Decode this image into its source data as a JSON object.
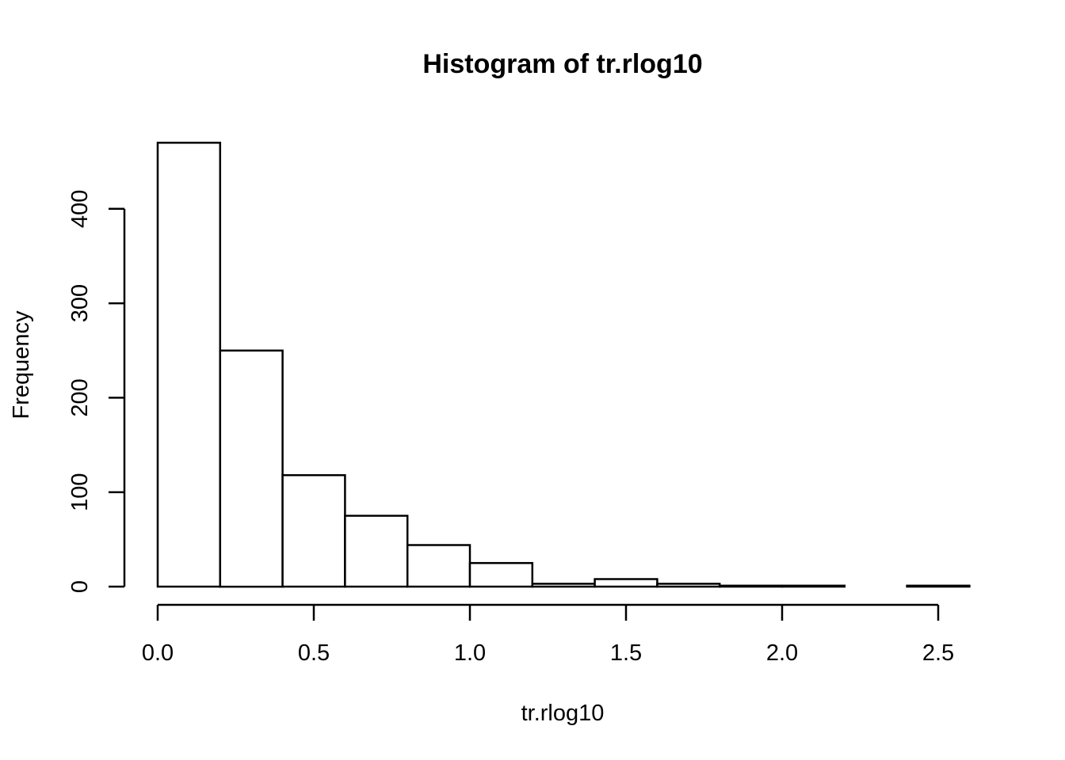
{
  "chart_data": {
    "type": "bar",
    "title": "Histogram of tr.rlog10",
    "xlabel": "tr.rlog10",
    "ylabel": "Frequency",
    "bins": [
      {
        "start": 0.0,
        "end": 0.2,
        "count": 470
      },
      {
        "start": 0.2,
        "end": 0.4,
        "count": 250
      },
      {
        "start": 0.4,
        "end": 0.6,
        "count": 118
      },
      {
        "start": 0.6,
        "end": 0.8,
        "count": 75
      },
      {
        "start": 0.8,
        "end": 1.0,
        "count": 44
      },
      {
        "start": 1.0,
        "end": 1.2,
        "count": 25
      },
      {
        "start": 1.2,
        "end": 1.4,
        "count": 3
      },
      {
        "start": 1.4,
        "end": 1.6,
        "count": 8
      },
      {
        "start": 1.6,
        "end": 1.8,
        "count": 3
      },
      {
        "start": 1.8,
        "end": 2.0,
        "count": 1
      },
      {
        "start": 2.0,
        "end": 2.2,
        "count": 1
      },
      {
        "start": 2.2,
        "end": 2.4,
        "count": 0
      },
      {
        "start": 2.4,
        "end": 2.6,
        "count": 1
      }
    ],
    "xlim": [
      0.0,
      2.6
    ],
    "ylim": [
      0,
      470
    ],
    "x_ticks": [
      0.0,
      0.5,
      1.0,
      1.5,
      2.0,
      2.5
    ],
    "x_tick_labels": [
      "0.0",
      "0.5",
      "1.0",
      "1.5",
      "2.0",
      "2.5"
    ],
    "y_ticks": [
      0,
      100,
      200,
      300,
      400
    ],
    "y_tick_labels": [
      "0",
      "100",
      "200",
      "300",
      "400"
    ],
    "grid": false,
    "legend": "none",
    "colors": {
      "bar_fill": "#ffffff",
      "bar_stroke": "#000000"
    }
  }
}
